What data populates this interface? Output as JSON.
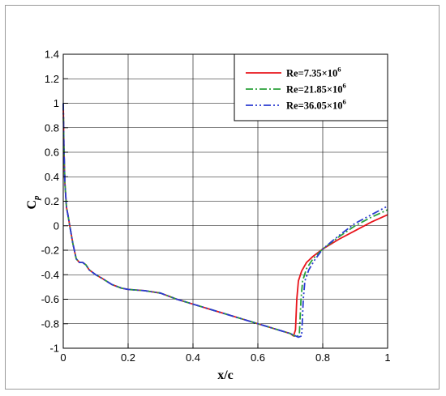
{
  "chart_data": {
    "type": "line",
    "title": "",
    "xlabel": "x/c",
    "ylabel_main": "C",
    "ylabel_sub": "p",
    "xlim": [
      0,
      1
    ],
    "ylim": [
      -1,
      1.4
    ],
    "x_ticks": [
      "0",
      "0.2",
      "0.4",
      "0.6",
      "0.8",
      "1"
    ],
    "y_ticks": [
      "-1",
      "-0.8",
      "-0.6",
      "-0.4",
      "-0.2",
      "0",
      "0.2",
      "0.4",
      "0.6",
      "0.8",
      "1",
      "1.2",
      "1.4"
    ],
    "grid": true,
    "legend_position": "top-right",
    "series": [
      {
        "name": "Re=7.35×10",
        "name_exp": "6",
        "color": "#e8141b",
        "dash": "solid",
        "points": [
          [
            0.0,
            1.0
          ],
          [
            0.002,
            0.65
          ],
          [
            0.005,
            0.35
          ],
          [
            0.01,
            0.15
          ],
          [
            0.015,
            0.08
          ],
          [
            0.02,
            0.0
          ],
          [
            0.03,
            -0.15
          ],
          [
            0.04,
            -0.27
          ],
          [
            0.05,
            -0.3
          ],
          [
            0.06,
            -0.3
          ],
          [
            0.07,
            -0.32
          ],
          [
            0.08,
            -0.36
          ],
          [
            0.1,
            -0.4
          ],
          [
            0.12,
            -0.43
          ],
          [
            0.15,
            -0.48
          ],
          [
            0.18,
            -0.51
          ],
          [
            0.2,
            -0.52
          ],
          [
            0.25,
            -0.53
          ],
          [
            0.3,
            -0.55
          ],
          [
            0.35,
            -0.6
          ],
          [
            0.4,
            -0.64
          ],
          [
            0.45,
            -0.68
          ],
          [
            0.5,
            -0.72
          ],
          [
            0.55,
            -0.76
          ],
          [
            0.6,
            -0.8
          ],
          [
            0.65,
            -0.84
          ],
          [
            0.7,
            -0.88
          ],
          [
            0.71,
            -0.9
          ],
          [
            0.716,
            -0.85
          ],
          [
            0.72,
            -0.6
          ],
          [
            0.725,
            -0.45
          ],
          [
            0.735,
            -0.37
          ],
          [
            0.75,
            -0.3
          ],
          [
            0.77,
            -0.25
          ],
          [
            0.8,
            -0.19
          ],
          [
            0.85,
            -0.11
          ],
          [
            0.9,
            -0.04
          ],
          [
            0.95,
            0.03
          ],
          [
            1.0,
            0.09
          ]
        ]
      },
      {
        "name": "Re=21.85×10",
        "name_exp": "6",
        "color": "#2aa13a",
        "dash": "9,3,2,3",
        "points": [
          [
            0.0,
            1.0
          ],
          [
            0.002,
            0.65
          ],
          [
            0.005,
            0.35
          ],
          [
            0.01,
            0.15
          ],
          [
            0.015,
            0.08
          ],
          [
            0.02,
            0.0
          ],
          [
            0.03,
            -0.15
          ],
          [
            0.04,
            -0.27
          ],
          [
            0.05,
            -0.3
          ],
          [
            0.06,
            -0.3
          ],
          [
            0.07,
            -0.32
          ],
          [
            0.08,
            -0.36
          ],
          [
            0.1,
            -0.4
          ],
          [
            0.12,
            -0.43
          ],
          [
            0.15,
            -0.48
          ],
          [
            0.18,
            -0.51
          ],
          [
            0.2,
            -0.52
          ],
          [
            0.25,
            -0.53
          ],
          [
            0.3,
            -0.55
          ],
          [
            0.35,
            -0.6
          ],
          [
            0.4,
            -0.64
          ],
          [
            0.45,
            -0.68
          ],
          [
            0.5,
            -0.72
          ],
          [
            0.55,
            -0.76
          ],
          [
            0.6,
            -0.8
          ],
          [
            0.65,
            -0.84
          ],
          [
            0.7,
            -0.88
          ],
          [
            0.72,
            -0.91
          ],
          [
            0.728,
            -0.88
          ],
          [
            0.733,
            -0.6
          ],
          [
            0.738,
            -0.45
          ],
          [
            0.75,
            -0.35
          ],
          [
            0.77,
            -0.27
          ],
          [
            0.8,
            -0.19
          ],
          [
            0.85,
            -0.09
          ],
          [
            0.9,
            0.0
          ],
          [
            0.95,
            0.07
          ],
          [
            1.0,
            0.13
          ]
        ]
      },
      {
        "name": "Re=36.05×10",
        "name_exp": "6",
        "color": "#2b3bd1",
        "dash": "9,3,2,3,2,3",
        "points": [
          [
            0.0,
            1.0
          ],
          [
            0.002,
            0.65
          ],
          [
            0.005,
            0.35
          ],
          [
            0.01,
            0.15
          ],
          [
            0.015,
            0.08
          ],
          [
            0.02,
            0.0
          ],
          [
            0.03,
            -0.15
          ],
          [
            0.04,
            -0.27
          ],
          [
            0.05,
            -0.3
          ],
          [
            0.06,
            -0.3
          ],
          [
            0.07,
            -0.32
          ],
          [
            0.08,
            -0.36
          ],
          [
            0.1,
            -0.4
          ],
          [
            0.12,
            -0.43
          ],
          [
            0.15,
            -0.48
          ],
          [
            0.18,
            -0.51
          ],
          [
            0.2,
            -0.52
          ],
          [
            0.25,
            -0.53
          ],
          [
            0.3,
            -0.55
          ],
          [
            0.35,
            -0.6
          ],
          [
            0.4,
            -0.64
          ],
          [
            0.45,
            -0.68
          ],
          [
            0.5,
            -0.72
          ],
          [
            0.55,
            -0.76
          ],
          [
            0.6,
            -0.8
          ],
          [
            0.65,
            -0.84
          ],
          [
            0.7,
            -0.88
          ],
          [
            0.725,
            -0.91
          ],
          [
            0.735,
            -0.9
          ],
          [
            0.74,
            -0.6
          ],
          [
            0.745,
            -0.45
          ],
          [
            0.757,
            -0.36
          ],
          [
            0.775,
            -0.28
          ],
          [
            0.8,
            -0.19
          ],
          [
            0.85,
            -0.08
          ],
          [
            0.9,
            0.02
          ],
          [
            0.95,
            0.09
          ],
          [
            1.0,
            0.16
          ]
        ]
      }
    ]
  }
}
